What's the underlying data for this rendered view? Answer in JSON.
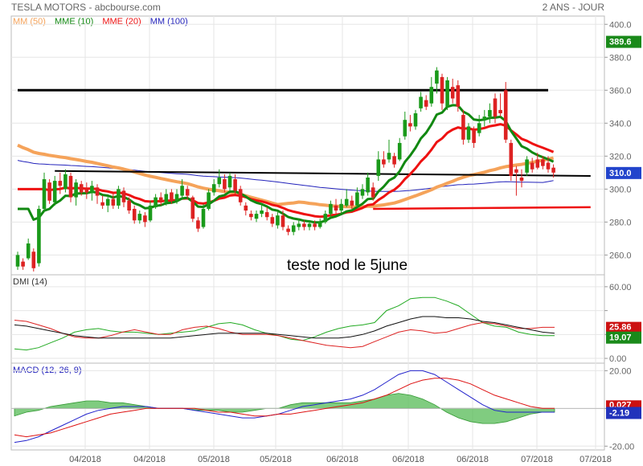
{
  "header": {
    "title": "TESLA MOTORS - abcbourse.com",
    "period": "2 ANS - JOUR"
  },
  "colors": {
    "up": "#1a9a1a",
    "down": "#dd2222",
    "mm50": "#f5a35a",
    "mme10": "#118811",
    "mme20": "#ee1111",
    "mm100": "#2222bb",
    "dmi_plus": "#22aa22",
    "dmi_minus": "#dd2222",
    "adx": "#111111",
    "macd": "#2222cc",
    "signal": "#dd1111",
    "hist": "#55bb55"
  },
  "chart_data": [
    {
      "type": "candlestick",
      "title": "TESLA MOTORS - abcbourse.com",
      "ylim": [
        248,
        405
      ],
      "yticks": [
        260,
        280,
        300,
        320,
        340,
        360,
        380,
        400
      ],
      "ytick_labels": [
        "260.0",
        "280.0",
        "300.0",
        "320.0",
        "340.0",
        "360.0",
        "380.0",
        "400.0"
      ],
      "xticks": [
        "04/2018",
        "04/2018",
        "05/2018",
        "05/2018",
        "06/2018",
        "06/2018",
        "06/2018",
        "07/2018",
        "07/2018"
      ],
      "legend": [
        "MM (50)",
        "MME (10)",
        "MME (20)",
        "MM (100)"
      ],
      "badges": {
        "last_high": "389.6",
        "last_close": "310.0"
      },
      "annotation": "teste nod le 5june",
      "candles": [
        {
          "o": 253,
          "c": 260,
          "h": 262,
          "l": 251
        },
        {
          "o": 256,
          "c": 253,
          "h": 258,
          "l": 251
        },
        {
          "o": 258,
          "c": 267,
          "h": 270,
          "l": 257
        },
        {
          "o": 262,
          "c": 252,
          "h": 264,
          "l": 250
        },
        {
          "o": 255,
          "c": 288,
          "h": 290,
          "l": 253
        },
        {
          "o": 288,
          "c": 306,
          "h": 310,
          "l": 286
        },
        {
          "o": 304,
          "c": 293,
          "h": 306,
          "l": 291
        },
        {
          "o": 292,
          "c": 305,
          "h": 308,
          "l": 290
        },
        {
          "o": 305,
          "c": 302,
          "h": 310,
          "l": 297
        },
        {
          "o": 300,
          "c": 309,
          "h": 312,
          "l": 298
        },
        {
          "o": 308,
          "c": 295,
          "h": 310,
          "l": 292
        },
        {
          "o": 295,
          "c": 304,
          "h": 306,
          "l": 290
        },
        {
          "o": 303,
          "c": 298,
          "h": 305,
          "l": 296
        },
        {
          "o": 300,
          "c": 298,
          "h": 304,
          "l": 294
        },
        {
          "o": 298,
          "c": 302,
          "h": 305,
          "l": 293
        },
        {
          "o": 301,
          "c": 296,
          "h": 303,
          "l": 291
        },
        {
          "o": 292,
          "c": 290,
          "h": 296,
          "l": 288
        },
        {
          "o": 290,
          "c": 294,
          "h": 296,
          "l": 286
        },
        {
          "o": 294,
          "c": 290,
          "h": 298,
          "l": 288
        },
        {
          "o": 290,
          "c": 300,
          "h": 302,
          "l": 288
        },
        {
          "o": 299,
          "c": 292,
          "h": 301,
          "l": 289
        },
        {
          "o": 293,
          "c": 287,
          "h": 295,
          "l": 285
        },
        {
          "o": 288,
          "c": 281,
          "h": 290,
          "l": 279
        },
        {
          "o": 281,
          "c": 285,
          "h": 287,
          "l": 279
        },
        {
          "o": 284,
          "c": 280,
          "h": 286,
          "l": 277
        },
        {
          "o": 281,
          "c": 290,
          "h": 293,
          "l": 280
        },
        {
          "o": 289,
          "c": 295,
          "h": 297,
          "l": 288
        },
        {
          "o": 295,
          "c": 292,
          "h": 298,
          "l": 290
        },
        {
          "o": 292,
          "c": 297,
          "h": 300,
          "l": 290
        },
        {
          "o": 298,
          "c": 293,
          "h": 300,
          "l": 291
        },
        {
          "o": 293,
          "c": 297,
          "h": 300,
          "l": 291
        },
        {
          "o": 296,
          "c": 302,
          "h": 306,
          "l": 294
        },
        {
          "o": 300,
          "c": 296,
          "h": 302,
          "l": 294
        },
        {
          "o": 295,
          "c": 282,
          "h": 296,
          "l": 280
        },
        {
          "o": 281,
          "c": 276,
          "h": 283,
          "l": 274
        },
        {
          "o": 277,
          "c": 288,
          "h": 291,
          "l": 276
        },
        {
          "o": 288,
          "c": 298,
          "h": 300,
          "l": 287
        },
        {
          "o": 298,
          "c": 303,
          "h": 306,
          "l": 296
        },
        {
          "o": 303,
          "c": 307,
          "h": 312,
          "l": 301
        },
        {
          "o": 306,
          "c": 300,
          "h": 309,
          "l": 298
        },
        {
          "o": 301,
          "c": 308,
          "h": 310,
          "l": 299
        },
        {
          "o": 306,
          "c": 299,
          "h": 309,
          "l": 297
        },
        {
          "o": 300,
          "c": 292,
          "h": 302,
          "l": 290
        },
        {
          "o": 290,
          "c": 287,
          "h": 292,
          "l": 284
        },
        {
          "o": 285,
          "c": 283,
          "h": 287,
          "l": 281
        },
        {
          "o": 282,
          "c": 285,
          "h": 287,
          "l": 280
        },
        {
          "o": 285,
          "c": 287,
          "h": 291,
          "l": 283
        },
        {
          "o": 286,
          "c": 283,
          "h": 289,
          "l": 281
        },
        {
          "o": 283,
          "c": 279,
          "h": 285,
          "l": 277
        },
        {
          "o": 278,
          "c": 284,
          "h": 286,
          "l": 276
        },
        {
          "o": 284,
          "c": 277,
          "h": 287,
          "l": 275
        },
        {
          "o": 276,
          "c": 274,
          "h": 278,
          "l": 272
        },
        {
          "o": 274,
          "c": 278,
          "h": 280,
          "l": 272
        },
        {
          "o": 277,
          "c": 279,
          "h": 282,
          "l": 275
        },
        {
          "o": 279,
          "c": 277,
          "h": 281,
          "l": 275
        },
        {
          "o": 277,
          "c": 279,
          "h": 281,
          "l": 275
        },
        {
          "o": 279,
          "c": 277,
          "h": 281,
          "l": 275
        },
        {
          "o": 277,
          "c": 280,
          "h": 282,
          "l": 276
        },
        {
          "o": 280,
          "c": 285,
          "h": 287,
          "l": 279
        },
        {
          "o": 285,
          "c": 291,
          "h": 293,
          "l": 283
        },
        {
          "o": 290,
          "c": 287,
          "h": 294,
          "l": 285
        },
        {
          "o": 287,
          "c": 291,
          "h": 294,
          "l": 285
        },
        {
          "o": 290,
          "c": 294,
          "h": 300,
          "l": 289
        },
        {
          "o": 293,
          "c": 290,
          "h": 296,
          "l": 288
        },
        {
          "o": 290,
          "c": 298,
          "h": 301,
          "l": 289
        },
        {
          "o": 296,
          "c": 300,
          "h": 303,
          "l": 294
        },
        {
          "o": 298,
          "c": 307,
          "h": 310,
          "l": 296
        },
        {
          "o": 301,
          "c": 295,
          "h": 304,
          "l": 293
        },
        {
          "o": 308,
          "c": 318,
          "h": 323,
          "l": 305
        },
        {
          "o": 318,
          "c": 315,
          "h": 323,
          "l": 313
        },
        {
          "o": 318,
          "c": 322,
          "h": 330,
          "l": 316
        },
        {
          "o": 320,
          "c": 315,
          "h": 322,
          "l": 313
        },
        {
          "o": 318,
          "c": 328,
          "h": 331,
          "l": 317
        },
        {
          "o": 332,
          "c": 342,
          "h": 347,
          "l": 330
        },
        {
          "o": 340,
          "c": 338,
          "h": 345,
          "l": 335
        },
        {
          "o": 338,
          "c": 346,
          "h": 348,
          "l": 336
        },
        {
          "o": 349,
          "c": 356,
          "h": 359,
          "l": 347
        },
        {
          "o": 354,
          "c": 350,
          "h": 357,
          "l": 348
        },
        {
          "o": 352,
          "c": 362,
          "h": 368,
          "l": 350
        },
        {
          "o": 364,
          "c": 372,
          "h": 374,
          "l": 358
        },
        {
          "o": 368,
          "c": 352,
          "h": 370,
          "l": 348
        },
        {
          "o": 350,
          "c": 366,
          "h": 368,
          "l": 348
        },
        {
          "o": 362,
          "c": 355,
          "h": 367,
          "l": 352
        },
        {
          "o": 363,
          "c": 350,
          "h": 366,
          "l": 347
        },
        {
          "o": 345,
          "c": 330,
          "h": 348,
          "l": 327
        },
        {
          "o": 330,
          "c": 338,
          "h": 340,
          "l": 328
        },
        {
          "o": 336,
          "c": 328,
          "h": 338,
          "l": 325
        },
        {
          "o": 334,
          "c": 340,
          "h": 345,
          "l": 332
        },
        {
          "o": 342,
          "c": 344,
          "h": 348,
          "l": 338
        },
        {
          "o": 344,
          "c": 348,
          "h": 352,
          "l": 340
        },
        {
          "o": 355,
          "c": 344,
          "h": 358,
          "l": 340
        },
        {
          "o": 348,
          "c": 346,
          "h": 358,
          "l": 344
        },
        {
          "o": 360,
          "c": 330,
          "h": 365,
          "l": 328
        },
        {
          "o": 328,
          "c": 308,
          "h": 330,
          "l": 305
        },
        {
          "o": 312,
          "c": 310,
          "h": 314,
          "l": 296
        },
        {
          "o": 307,
          "c": 305,
          "h": 312,
          "l": 301
        },
        {
          "o": 310,
          "c": 318,
          "h": 320,
          "l": 308
        },
        {
          "o": 316,
          "c": 312,
          "h": 319,
          "l": 310
        },
        {
          "o": 318,
          "c": 313,
          "h": 322,
          "l": 312
        },
        {
          "o": 318,
          "c": 314,
          "h": 320,
          "l": 312
        },
        {
          "o": 316,
          "c": 312,
          "h": 320,
          "l": 310
        },
        {
          "o": 313,
          "c": 310,
          "h": 315,
          "l": 307
        }
      ],
      "hlines": [
        {
          "from": 0,
          "to": 100,
          "y": 360
        },
        {
          "from": 7,
          "to": 108,
          "y": 311,
          "y2": 308
        }
      ],
      "support_line": {
        "from": 67,
        "to": 108,
        "y": 288,
        "y2": 289
      }
    },
    {
      "type": "line",
      "title": "DMI (14)",
      "ylim": [
        -4,
        70
      ],
      "yticks": [
        0,
        20,
        40,
        60
      ],
      "ytick_labels": [
        "0.00",
        "20.00",
        "",
        "60.00"
      ],
      "badges": {
        "minus": "25.86",
        "plus": "19.07"
      },
      "series": [
        {
          "name": "+DI",
          "key": "plus",
          "values": [
            8,
            7,
            9,
            13,
            17,
            22,
            24,
            25,
            23,
            22,
            22,
            21,
            20,
            21,
            22,
            23,
            26,
            29,
            30,
            28,
            24,
            21,
            19,
            16,
            15,
            18,
            22,
            25,
            27,
            28,
            30,
            40,
            44,
            50,
            51,
            51,
            48,
            44,
            37,
            30,
            27,
            26,
            22,
            20,
            19,
            19
          ]
        },
        {
          "name": "-DI",
          "key": "minus",
          "values": [
            32,
            31,
            28,
            25,
            21,
            18,
            17,
            17,
            19,
            22,
            24,
            22,
            20,
            20,
            24,
            26,
            27,
            25,
            22,
            20,
            20,
            20,
            19,
            17,
            15,
            13,
            11,
            10,
            9,
            10,
            14,
            18,
            22,
            24,
            23,
            21,
            22,
            25,
            28,
            30,
            29,
            27,
            25,
            25,
            26,
            26
          ]
        },
        {
          "name": "ADX",
          "key": "adx",
          "values": [
            28,
            27,
            25,
            23,
            21,
            19,
            18,
            17,
            17,
            17,
            17,
            17,
            17,
            17,
            18,
            19,
            20,
            21,
            21,
            21,
            21,
            21,
            20,
            19,
            18,
            17,
            17,
            17,
            18,
            20,
            23,
            27,
            30,
            33,
            35,
            35,
            34,
            34,
            33,
            31,
            30,
            28,
            26,
            24,
            22,
            21
          ]
        }
      ]
    },
    {
      "type": "line",
      "title": "MACD (12, 26, 9)",
      "ylim": [
        -22,
        24
      ],
      "yticks": [
        -20,
        0,
        20
      ],
      "ytick_labels": [
        "-20.00",
        "",
        "20.00"
      ],
      "badges": {
        "signal": "0.027",
        "macd": "-2.19"
      },
      "series": [
        {
          "name": "MACD",
          "key": "macd",
          "values": [
            -18,
            -17,
            -15,
            -12,
            -9,
            -6,
            -3,
            -1,
            0,
            1,
            1,
            1,
            0,
            0,
            0,
            -1,
            -2,
            -3,
            -4,
            -5,
            -5,
            -4,
            -3,
            -1,
            1,
            2,
            3,
            4,
            5,
            7,
            10,
            14,
            18,
            20,
            20,
            18,
            14,
            10,
            6,
            2,
            -1,
            -2,
            -2,
            -2,
            -2,
            -2
          ]
        },
        {
          "name": "Signal",
          "key": "signal",
          "values": [
            -14,
            -15,
            -14,
            -13,
            -11,
            -9,
            -7,
            -5,
            -3,
            -2,
            -1,
            0,
            0,
            0,
            0,
            0,
            -1,
            -2,
            -2,
            -3,
            -4,
            -4,
            -3,
            -3,
            -2,
            -1,
            0,
            1,
            2,
            3,
            5,
            7,
            10,
            13,
            15,
            16,
            16,
            15,
            13,
            10,
            7,
            5,
            3,
            1,
            0,
            0
          ]
        },
        {
          "name": "Histogram",
          "key": "hist",
          "values": [
            -4,
            -2,
            -1,
            1,
            2,
            3,
            4,
            4,
            3,
            3,
            2,
            1,
            0,
            0,
            0,
            -1,
            -1,
            -1,
            -2,
            -2,
            -1,
            0,
            0,
            2,
            3,
            3,
            3,
            3,
            3,
            4,
            5,
            7,
            8,
            7,
            5,
            2,
            -2,
            -5,
            -7,
            -8,
            -8,
            -7,
            -5,
            -3,
            -2,
            -2
          ]
        }
      ]
    }
  ]
}
